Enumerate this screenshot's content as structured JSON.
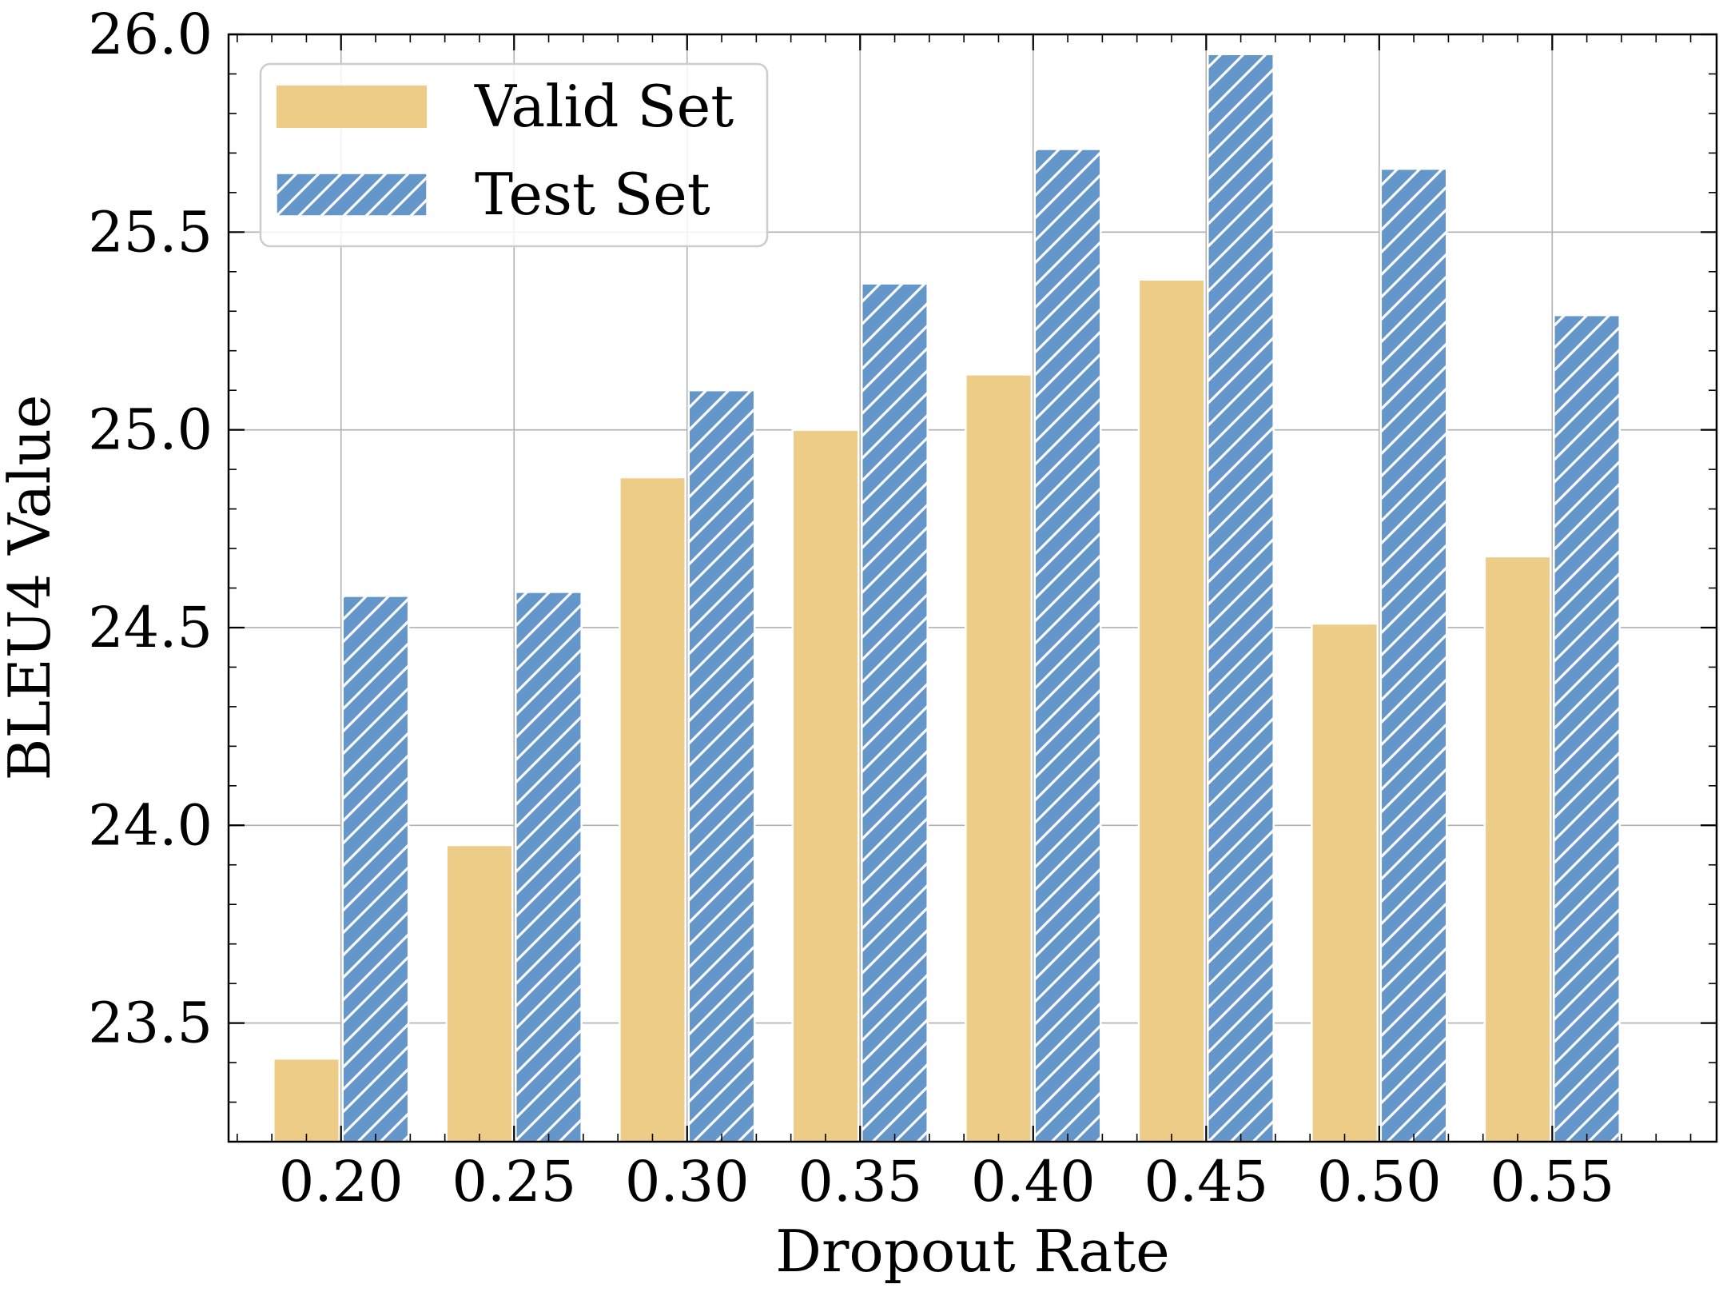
{
  "chart_data": {
    "type": "bar",
    "title": "",
    "xlabel": "Dropout Rate",
    "ylabel": "BLEU4 Value",
    "categories": [
      "0.20",
      "0.25",
      "0.30",
      "0.35",
      "0.40",
      "0.45",
      "0.50",
      "0.55"
    ],
    "x": [
      0.2,
      0.25,
      0.3,
      0.35,
      0.4,
      0.45,
      0.5,
      0.55
    ],
    "series": [
      {
        "name": "Valid Set",
        "color": "#edcc88",
        "pattern": "solid",
        "values": [
          23.41,
          23.95,
          24.88,
          25.0,
          25.14,
          25.38,
          24.51,
          24.68
        ]
      },
      {
        "name": "Test Set",
        "color": "#6596c9",
        "pattern": "diagonal-hatch",
        "values": [
          24.58,
          24.59,
          25.1,
          25.37,
          25.71,
          25.95,
          25.66,
          25.29
        ]
      }
    ],
    "xlim": [
      0.1675,
      0.5975
    ],
    "ylim": [
      23.2,
      26.0
    ],
    "yticks": [
      23.5,
      24.0,
      24.5,
      25.0,
      25.5,
      26.0
    ],
    "ytick_labels": [
      "23.5",
      "24.0",
      "24.5",
      "25.0",
      "25.5",
      "26.0"
    ],
    "grid": true,
    "legend_position": "top-left"
  }
}
